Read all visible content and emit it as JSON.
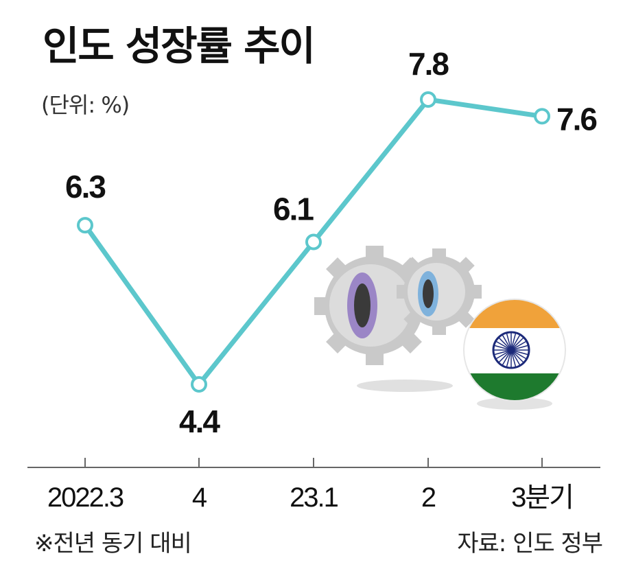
{
  "header": {
    "title": "인도 성장률 추이",
    "unit": "(단위: %)"
  },
  "footer": {
    "note": "※전년 동기 대비",
    "source": "자료: 인도 정부"
  },
  "colors": {
    "line": "#5cc7cc",
    "saffron": "#f0a23a",
    "green": "#1e7a2e",
    "chakra": "#1c2a7a",
    "gear": "#d6d6d6"
  },
  "chart_data": {
    "type": "line",
    "title": "인도 성장률 추이",
    "ylabel": "(단위: %)",
    "categories": [
      "2022.3",
      "4",
      "23.1",
      "2",
      "3분기"
    ],
    "values": [
      6.3,
      4.4,
      6.1,
      7.8,
      7.6
    ],
    "value_labels": [
      "6.3",
      "4.4",
      "6.1",
      "7.8",
      "7.6"
    ],
    "ylim": [
      4.4,
      7.8
    ],
    "grid": false,
    "legend": "none"
  }
}
